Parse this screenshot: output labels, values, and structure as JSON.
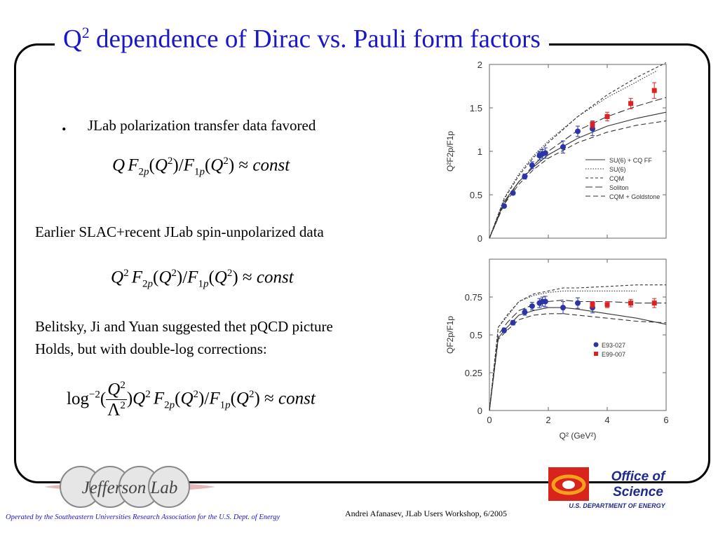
{
  "title": {
    "main": "Q",
    "sup": "2",
    "rest": " dependence of Dirac vs. Pauli form factors"
  },
  "bullet": {
    "symbol": ".",
    "text": "JLab polarization transfer data favored"
  },
  "formula1": "Q F2p(Q²)/F1p(Q²) ≈ const",
  "text2": "Earlier SLAC+recent JLab spin-unpolarized data",
  "formula2": "Q² F2p(Q²)/F1p(Q²) ≈ const",
  "text3": {
    "line1": "Belitsky, Ji and Yuan suggested thet pQCD picture",
    "line2": "Holds, but with double-log corrections:"
  },
  "formula3": "log⁻²(Q²/Λ²)Q² F2p(Q²)/F1p(Q²) ≈ const",
  "footer": {
    "left": "Operated by the Southeastern Universities Research Association for the U.S. Dept. of Energy",
    "right": "Andrei Afanasev, JLab Users Workshop, 6/2005"
  },
  "logos": {
    "jlab": "Jefferson Lab",
    "office_line1": "Office of",
    "office_line2": "Science",
    "office_sub": "U.S. DEPARTMENT OF ENERGY"
  },
  "colors": {
    "title": "#1a17c8",
    "series_blue": "#2b35a8",
    "series_red": "#e02020"
  },
  "chart_data": [
    {
      "type": "line",
      "ylabel": "Q²F2p/F1p",
      "xlim": [
        0,
        6
      ],
      "ylim": [
        0,
        2
      ],
      "yticks": [
        "0",
        "0.5",
        "1",
        "1.5",
        "2"
      ],
      "legend_position": "lower-right",
      "series": [
        {
          "name": "SU(6) + CQ FF",
          "style": "solid",
          "x": [
            0,
            0.5,
            1,
            1.5,
            2,
            3,
            4,
            5,
            6
          ],
          "y": [
            0,
            0.42,
            0.65,
            0.82,
            0.96,
            1.15,
            1.29,
            1.38,
            1.45
          ]
        },
        {
          "name": "SU(6)",
          "style": "dotted",
          "x": [
            0,
            0.5,
            1,
            1.5,
            2,
            3,
            4,
            5,
            5.7
          ],
          "y": [
            0,
            0.46,
            0.74,
            0.95,
            1.12,
            1.4,
            1.62,
            1.8,
            1.93
          ]
        },
        {
          "name": "CQM",
          "style": "short-dash",
          "x": [
            0,
            0.5,
            1,
            1.5,
            2,
            3,
            4,
            5,
            6
          ],
          "y": [
            0,
            0.45,
            0.72,
            0.93,
            1.1,
            1.4,
            1.65,
            1.85,
            2.02
          ]
        },
        {
          "name": "Soliton",
          "style": "long-dash",
          "x": [
            0,
            0.5,
            1,
            1.5,
            2,
            3,
            4,
            5,
            6
          ],
          "y": [
            0,
            0.4,
            0.65,
            0.84,
            1.0,
            1.24,
            1.4,
            1.52,
            1.62
          ]
        },
        {
          "name": "CQM + Goldstone",
          "style": "dash",
          "x": [
            0,
            0.5,
            1,
            1.5,
            2,
            3,
            4,
            5,
            6
          ],
          "y": [
            0,
            0.39,
            0.62,
            0.79,
            0.92,
            1.1,
            1.22,
            1.3,
            1.35
          ]
        }
      ],
      "points": [
        {
          "name": "E93-027",
          "x": [
            0.5,
            0.8,
            1.2,
            1.45,
            1.7,
            1.8,
            1.9,
            2.5,
            3.0,
            3.5
          ],
          "y": [
            0.37,
            0.52,
            0.71,
            0.84,
            0.95,
            0.97,
            0.98,
            1.05,
            1.23,
            1.26
          ],
          "err": [
            0.02,
            0.02,
            0.03,
            0.04,
            0.05,
            0.05,
            0.06,
            0.07,
            0.06,
            0.08
          ]
        },
        {
          "name": "E99-007",
          "x": [
            3.5,
            4.0,
            4.8,
            5.6
          ],
          "y": [
            1.31,
            1.4,
            1.55,
            1.7
          ],
          "err": [
            0.04,
            0.05,
            0.06,
            0.09
          ]
        }
      ]
    },
    {
      "type": "line",
      "ylabel": "QF2p/F1p",
      "xlabel": "Q² (GeV²)",
      "xlim": [
        0,
        6
      ],
      "ylim": [
        0,
        1
      ],
      "xticks": [
        "0",
        "2",
        "4",
        "6"
      ],
      "yticks": [
        "0",
        "0.25",
        "0.5",
        "0.75"
      ],
      "legend_position": "lower-right",
      "series": [
        {
          "name": "SU(6) + CQ FF",
          "style": "solid",
          "x": [
            0,
            0.3,
            0.6,
            1,
            1.5,
            2,
            2.5,
            3,
            4,
            5,
            6
          ],
          "y": [
            0,
            0.48,
            0.55,
            0.63,
            0.66,
            0.68,
            0.68,
            0.67,
            0.64,
            0.61,
            0.57
          ]
        },
        {
          "name": "SU(6)",
          "style": "dotted",
          "x": [
            0,
            0.3,
            0.6,
            1,
            1.5,
            2,
            2.5,
            3,
            4,
            5
          ],
          "y": [
            0,
            0.55,
            0.62,
            0.72,
            0.76,
            0.78,
            0.79,
            0.79,
            0.79,
            0.79
          ]
        },
        {
          "name": "CQM",
          "style": "short-dash",
          "x": [
            0,
            0.3,
            0.6,
            1,
            1.5,
            2,
            2.5,
            3,
            4,
            5,
            6
          ],
          "y": [
            0,
            0.55,
            0.63,
            0.72,
            0.77,
            0.79,
            0.81,
            0.81,
            0.82,
            0.83,
            0.83
          ]
        },
        {
          "name": "Soliton",
          "style": "long-dash",
          "x": [
            0,
            0.3,
            0.6,
            1,
            1.5,
            2,
            2.5,
            3,
            4,
            5,
            6
          ],
          "y": [
            0,
            0.5,
            0.58,
            0.66,
            0.7,
            0.72,
            0.73,
            0.72,
            0.72,
            0.71,
            0.71
          ]
        },
        {
          "name": "CQM + Goldstone",
          "style": "dash",
          "x": [
            0,
            0.3,
            0.6,
            1,
            1.5,
            2,
            2.5,
            3,
            4,
            5,
            6
          ],
          "y": [
            0,
            0.47,
            0.53,
            0.6,
            0.63,
            0.64,
            0.64,
            0.63,
            0.61,
            0.59,
            0.58
          ]
        }
      ],
      "points": [
        {
          "name": "E93-027",
          "x": [
            0.5,
            0.8,
            1.2,
            1.45,
            1.7,
            1.8,
            1.9,
            2.5,
            3.0,
            3.5
          ],
          "y": [
            0.53,
            0.58,
            0.65,
            0.69,
            0.71,
            0.72,
            0.72,
            0.68,
            0.71,
            0.68
          ],
          "err": [
            0.015,
            0.015,
            0.02,
            0.025,
            0.03,
            0.03,
            0.035,
            0.04,
            0.035,
            0.035
          ]
        },
        {
          "name": "E99-007",
          "x": [
            3.5,
            4.0,
            4.8,
            5.6
          ],
          "y": [
            0.7,
            0.7,
            0.71,
            0.71
          ],
          "err": [
            0.02,
            0.02,
            0.025,
            0.03
          ]
        }
      ]
    }
  ]
}
